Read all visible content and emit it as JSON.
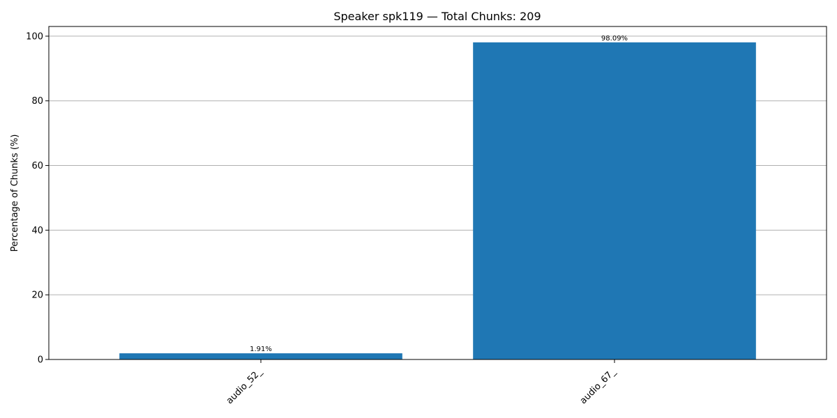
{
  "chart_data": {
    "type": "bar",
    "title": "Speaker spk119 — Total Chunks: 209",
    "xlabel": "",
    "ylabel": "Percentage of Chunks (%)",
    "categories": [
      "audio_52_",
      "audio_67_"
    ],
    "values": [
      1.91,
      98.09
    ],
    "data_labels": [
      "1.91%",
      "98.09%"
    ],
    "ylim": [
      0,
      103
    ],
    "yticks": [
      0,
      20,
      40,
      60,
      80,
      100
    ],
    "grid": "y",
    "bar_color": "#1f77b4",
    "grid_color": "#b0b0b0"
  }
}
